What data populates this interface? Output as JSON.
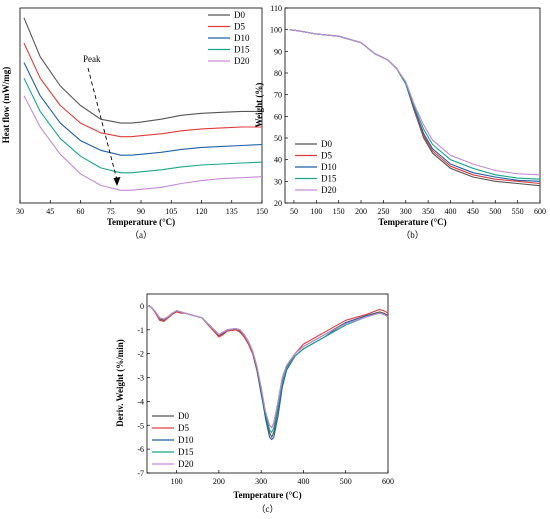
{
  "chart_data": [
    {
      "type": "line",
      "panel": "a",
      "caption": "（a）",
      "xlabel": "Temperature (°C)",
      "ylabel": "Heat flow (mW/mg)",
      "xlim": [
        30,
        150
      ],
      "xticks": [
        "30",
        "45",
        "60",
        "75",
        "90",
        "105",
        "120",
        "135",
        "150"
      ],
      "y_ticks_shown": false,
      "annotation": "Peak",
      "legend": "top-right",
      "series": [
        {
          "name": "D0",
          "color": "#555555",
          "x": [
            32,
            40,
            50,
            60,
            70,
            80,
            85,
            90,
            100,
            110,
            120,
            130,
            140,
            150
          ],
          "y": [
            0.95,
            0.75,
            0.6,
            0.5,
            0.43,
            0.41,
            0.41,
            0.415,
            0.43,
            0.45,
            0.46,
            0.465,
            0.47,
            0.47
          ]
        },
        {
          "name": "D5",
          "color": "#e03c3c",
          "x": [
            32,
            40,
            50,
            60,
            70,
            80,
            85,
            90,
            100,
            110,
            120,
            130,
            140,
            150
          ],
          "y": [
            0.82,
            0.64,
            0.5,
            0.41,
            0.36,
            0.34,
            0.34,
            0.345,
            0.355,
            0.37,
            0.38,
            0.385,
            0.39,
            0.39
          ]
        },
        {
          "name": "D10",
          "color": "#1f5fa8",
          "x": [
            32,
            40,
            50,
            60,
            70,
            80,
            85,
            90,
            100,
            110,
            120,
            130,
            140,
            150
          ],
          "y": [
            0.72,
            0.55,
            0.41,
            0.32,
            0.27,
            0.245,
            0.245,
            0.25,
            0.26,
            0.275,
            0.285,
            0.29,
            0.295,
            0.3
          ]
        },
        {
          "name": "D15",
          "color": "#1aa58a",
          "x": [
            32,
            40,
            50,
            60,
            70,
            80,
            85,
            90,
            100,
            110,
            120,
            130,
            140,
            150
          ],
          "y": [
            0.64,
            0.47,
            0.33,
            0.24,
            0.18,
            0.155,
            0.155,
            0.16,
            0.17,
            0.185,
            0.195,
            0.2,
            0.205,
            0.21
          ]
        },
        {
          "name": "D20",
          "color": "#c58bd6",
          "x": [
            32,
            40,
            50,
            60,
            70,
            80,
            85,
            90,
            100,
            110,
            120,
            130,
            140,
            150
          ],
          "y": [
            0.55,
            0.39,
            0.25,
            0.15,
            0.09,
            0.065,
            0.065,
            0.07,
            0.08,
            0.1,
            0.115,
            0.125,
            0.13,
            0.135
          ]
        }
      ]
    },
    {
      "type": "line",
      "panel": "b",
      "caption": "（b）",
      "xlabel": "Temperature (°C)",
      "ylabel": "Weight (%)",
      "xlim": [
        30,
        600
      ],
      "ylim": [
        20,
        110
      ],
      "xticks": [
        "50",
        "100",
        "150",
        "200",
        "250",
        "300",
        "350",
        "400",
        "450",
        "500",
        "550",
        "600"
      ],
      "yticks": [
        "20",
        "30",
        "40",
        "50",
        "60",
        "70",
        "80",
        "90",
        "100",
        "110"
      ],
      "legend": "bottom-left",
      "series": [
        {
          "name": "D0",
          "color": "#555555",
          "x": [
            40,
            60,
            100,
            150,
            200,
            230,
            260,
            280,
            300,
            320,
            340,
            360,
            400,
            450,
            500,
            550,
            600
          ],
          "y": [
            100,
            99.5,
            98,
            97,
            94,
            89,
            86,
            82,
            75,
            62,
            50,
            43,
            36,
            32,
            30,
            29,
            28
          ]
        },
        {
          "name": "D5",
          "color": "#e03c3c",
          "x": [
            40,
            60,
            100,
            150,
            200,
            230,
            260,
            280,
            300,
            320,
            340,
            360,
            400,
            450,
            500,
            550,
            600
          ],
          "y": [
            100,
            99.5,
            98,
            97,
            94,
            89,
            86,
            82,
            75,
            62,
            51,
            44,
            37,
            33,
            31,
            30,
            29
          ]
        },
        {
          "name": "D10",
          "color": "#1f5fa8",
          "x": [
            40,
            60,
            100,
            150,
            200,
            230,
            260,
            280,
            300,
            320,
            340,
            360,
            400,
            450,
            500,
            550,
            600
          ],
          "y": [
            100,
            99.5,
            98,
            97,
            94,
            89,
            86,
            82,
            75,
            63,
            52,
            45,
            38,
            34,
            32,
            30.5,
            30
          ]
        },
        {
          "name": "D15",
          "color": "#1aa58a",
          "x": [
            40,
            60,
            100,
            150,
            200,
            230,
            260,
            280,
            300,
            320,
            340,
            360,
            400,
            450,
            500,
            550,
            600
          ],
          "y": [
            100,
            99.5,
            98,
            97,
            94,
            89,
            86,
            82,
            75,
            64,
            54,
            47,
            40,
            36,
            33,
            31.5,
            31
          ]
        },
        {
          "name": "D20",
          "color": "#c58bd6",
          "x": [
            40,
            60,
            100,
            150,
            200,
            230,
            260,
            280,
            300,
            320,
            340,
            360,
            400,
            450,
            500,
            550,
            600
          ],
          "y": [
            100,
            99.5,
            98,
            97,
            94,
            89,
            86,
            82,
            76,
            65,
            56,
            49,
            42,
            38,
            35,
            33.5,
            33
          ]
        }
      ]
    },
    {
      "type": "line",
      "panel": "c",
      "caption": "（c）",
      "xlabel": "Temperature (°C)",
      "ylabel": "Deriv. Weight (%/min)",
      "xlim": [
        30,
        600
      ],
      "ylim": [
        -7,
        0.5
      ],
      "xticks": [
        "100",
        "200",
        "300",
        "400",
        "500",
        "600"
      ],
      "yticks": [
        "0",
        "-1",
        "-2",
        "-3",
        "-4",
        "-5",
        "-6",
        "-7"
      ],
      "legend": "bottom-left",
      "series": [
        {
          "name": "D0",
          "color": "#555555",
          "x": [
            30,
            40,
            50,
            60,
            70,
            80,
            90,
            100,
            110,
            120,
            130,
            140,
            160,
            180,
            200,
            210,
            220,
            240,
            250,
            260,
            270,
            280,
            290,
            300,
            310,
            320,
            325,
            330,
            340,
            350,
            360,
            380,
            400,
            450,
            500,
            550,
            580,
            590,
            600
          ],
          "y": [
            0,
            -0.05,
            -0.25,
            -0.55,
            -0.6,
            -0.45,
            -0.3,
            -0.25,
            -0.3,
            -0.3,
            -0.35,
            -0.4,
            -0.5,
            -0.9,
            -1.25,
            -1.15,
            -1.05,
            -1.0,
            -1.1,
            -1.3,
            -1.6,
            -2.0,
            -2.7,
            -3.7,
            -4.6,
            -5.3,
            -5.5,
            -5.3,
            -4.3,
            -3.2,
            -2.6,
            -2.0,
            -1.7,
            -1.2,
            -0.7,
            -0.4,
            -0.25,
            -0.3,
            -0.4
          ]
        },
        {
          "name": "D5",
          "color": "#e03c3c",
          "x": [
            30,
            40,
            50,
            60,
            70,
            80,
            90,
            100,
            110,
            120,
            130,
            140,
            160,
            180,
            200,
            210,
            220,
            240,
            250,
            260,
            270,
            280,
            290,
            300,
            310,
            320,
            325,
            330,
            340,
            350,
            360,
            380,
            400,
            450,
            500,
            550,
            580,
            590,
            600
          ],
          "y": [
            0,
            -0.05,
            -0.3,
            -0.6,
            -0.65,
            -0.5,
            -0.35,
            -0.25,
            -0.3,
            -0.3,
            -0.35,
            -0.4,
            -0.5,
            -0.9,
            -1.3,
            -1.2,
            -1.05,
            -1.0,
            -1.05,
            -1.3,
            -1.6,
            -2.0,
            -2.7,
            -3.6,
            -4.5,
            -5.0,
            -5.1,
            -4.9,
            -4.0,
            -3.0,
            -2.5,
            -2.0,
            -1.6,
            -1.1,
            -0.6,
            -0.35,
            -0.15,
            -0.2,
            -0.3
          ]
        },
        {
          "name": "D10",
          "color": "#1f5fa8",
          "x": [
            30,
            40,
            50,
            60,
            70,
            80,
            90,
            100,
            110,
            120,
            130,
            140,
            160,
            180,
            200,
            210,
            220,
            240,
            250,
            260,
            270,
            280,
            290,
            300,
            310,
            320,
            325,
            330,
            340,
            350,
            360,
            380,
            400,
            450,
            500,
            550,
            580,
            590,
            600
          ],
          "y": [
            0,
            -0.05,
            -0.25,
            -0.5,
            -0.55,
            -0.45,
            -0.3,
            -0.2,
            -0.25,
            -0.3,
            -0.35,
            -0.4,
            -0.5,
            -0.85,
            -1.2,
            -1.1,
            -1.0,
            -0.95,
            -1.0,
            -1.2,
            -1.5,
            -1.9,
            -2.6,
            -3.6,
            -4.7,
            -5.5,
            -5.6,
            -5.5,
            -4.6,
            -3.4,
            -2.7,
            -2.1,
            -1.8,
            -1.3,
            -0.7,
            -0.4,
            -0.3,
            -0.35,
            -0.45
          ]
        },
        {
          "name": "D15",
          "color": "#1aa58a",
          "x": [
            30,
            40,
            50,
            60,
            70,
            80,
            90,
            100,
            110,
            120,
            130,
            140,
            160,
            180,
            200,
            210,
            220,
            240,
            250,
            260,
            270,
            280,
            290,
            300,
            310,
            320,
            325,
            330,
            340,
            350,
            360,
            380,
            400,
            450,
            500,
            550,
            580,
            590,
            600
          ],
          "y": [
            0,
            -0.05,
            -0.25,
            -0.5,
            -0.55,
            -0.45,
            -0.3,
            -0.2,
            -0.25,
            -0.3,
            -0.35,
            -0.4,
            -0.5,
            -0.85,
            -1.2,
            -1.1,
            -1.0,
            -0.95,
            -1.0,
            -1.2,
            -1.5,
            -1.9,
            -2.6,
            -3.5,
            -4.5,
            -5.2,
            -5.3,
            -5.1,
            -4.2,
            -3.2,
            -2.6,
            -2.1,
            -1.8,
            -1.3,
            -0.8,
            -0.45,
            -0.3,
            -0.35,
            -0.45
          ]
        },
        {
          "name": "D20",
          "color": "#c58bd6",
          "x": [
            30,
            40,
            50,
            60,
            70,
            80,
            90,
            100,
            110,
            120,
            130,
            140,
            160,
            180,
            200,
            210,
            220,
            240,
            250,
            260,
            270,
            280,
            290,
            300,
            310,
            320,
            325,
            330,
            340,
            350,
            360,
            380,
            400,
            450,
            500,
            550,
            580,
            590,
            600
          ],
          "y": [
            0,
            -0.05,
            -0.25,
            -0.5,
            -0.55,
            -0.45,
            -0.3,
            -0.2,
            -0.25,
            -0.3,
            -0.35,
            -0.4,
            -0.5,
            -0.85,
            -1.2,
            -1.1,
            -1.0,
            -0.95,
            -1.0,
            -1.2,
            -1.5,
            -1.9,
            -2.5,
            -3.4,
            -4.4,
            -5.0,
            -5.1,
            -4.9,
            -4.0,
            -3.0,
            -2.5,
            -2.0,
            -1.7,
            -1.2,
            -0.75,
            -0.45,
            -0.3,
            -0.35,
            -0.45
          ]
        }
      ]
    }
  ]
}
